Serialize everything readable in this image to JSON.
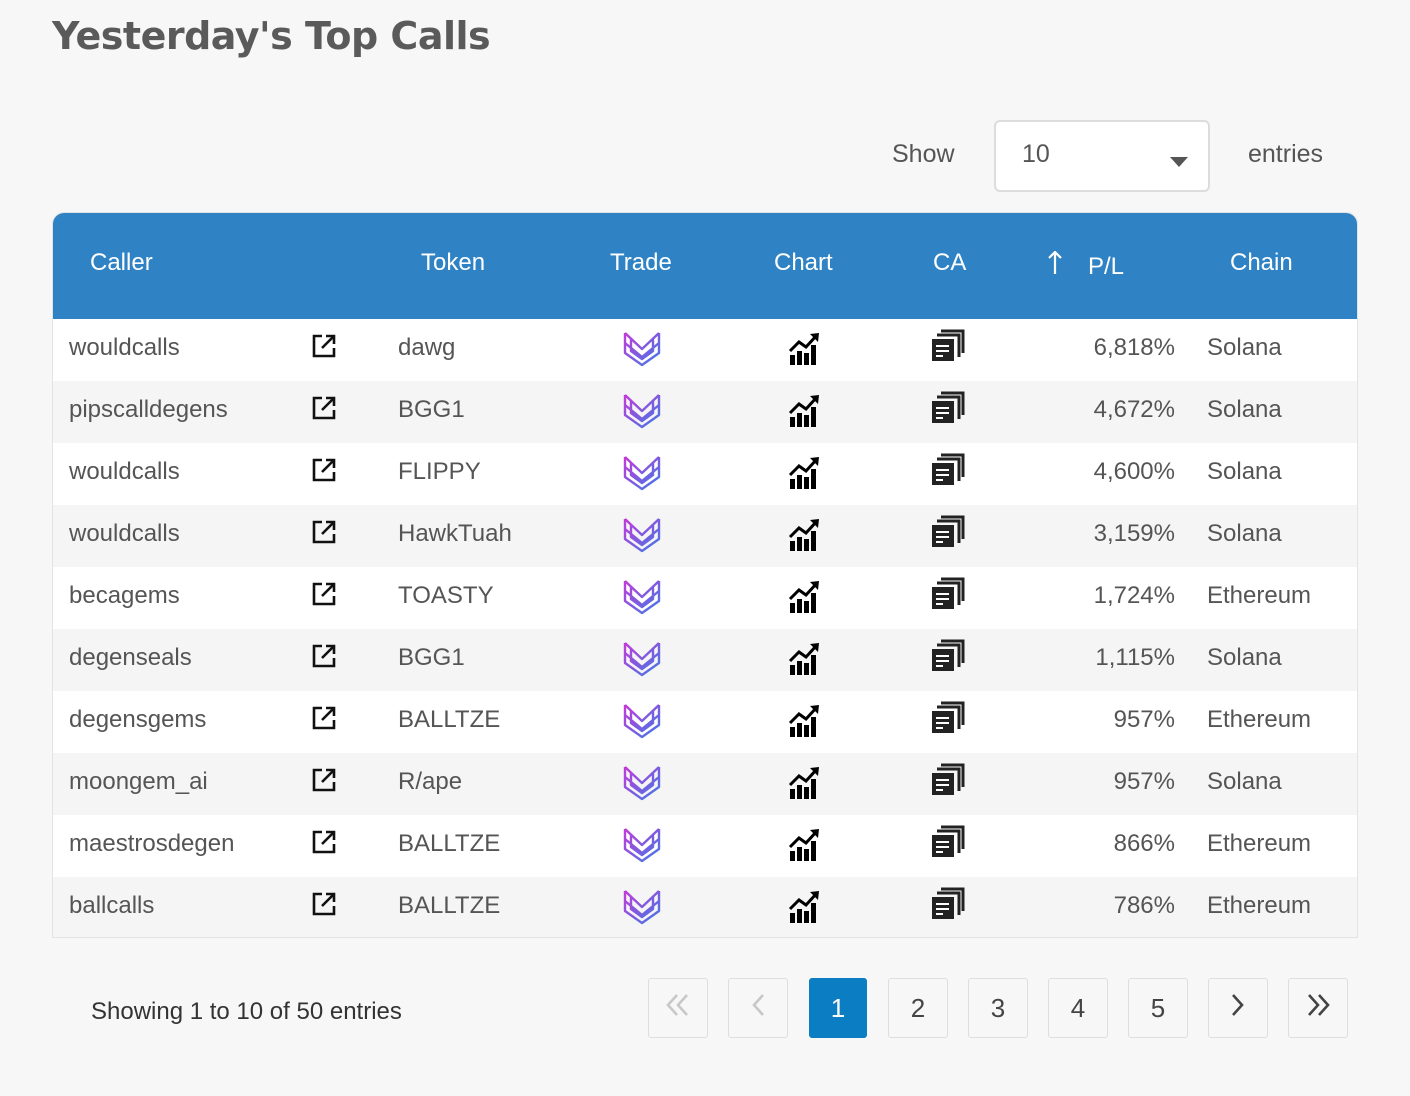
{
  "page": {
    "title": "Yesterday's Top Calls"
  },
  "length_control": {
    "show_label": "Show",
    "value": "10",
    "entries_label": "entries"
  },
  "table": {
    "columns": [
      "Caller",
      "Token",
      "Trade",
      "Chart",
      "CA",
      "P/L",
      "Chain"
    ],
    "sort": {
      "column": "P/L",
      "direction": "arrow-up-icon"
    },
    "header_color": "#2f83c5",
    "rows": [
      {
        "caller": "wouldcalls",
        "token": "dawg",
        "pl": "6,818%",
        "chain": "Solana"
      },
      {
        "caller": "pipscalldegens",
        "token": "BGG1",
        "pl": "4,672%",
        "chain": "Solana"
      },
      {
        "caller": "wouldcalls",
        "token": "FLIPPY",
        "pl": "4,600%",
        "chain": "Solana"
      },
      {
        "caller": "wouldcalls",
        "token": "HawkTuah",
        "pl": "3,159%",
        "chain": "Solana"
      },
      {
        "caller": "becagems",
        "token": "TOASTY",
        "pl": "1,724%",
        "chain": "Ethereum"
      },
      {
        "caller": "degenseals",
        "token": "BGG1",
        "pl": "1,115%",
        "chain": "Solana"
      },
      {
        "caller": "degensgems",
        "token": "BALLTZE",
        "pl": "957%",
        "chain": "Ethereum"
      },
      {
        "caller": "moongem_ai",
        "token": "R/ape",
        "pl": "957%",
        "chain": "Solana"
      },
      {
        "caller": "maestrosdegen",
        "token": "BALLTZE",
        "pl": "866%",
        "chain": "Ethereum"
      },
      {
        "caller": "ballcalls",
        "token": "BALLTZE",
        "pl": "786%",
        "chain": "Ethereum"
      }
    ],
    "row_icons": {
      "caller_link": "external-link-icon",
      "trade": "trade-logo-icon",
      "chart": "chart-icon",
      "ca": "copy-icon"
    }
  },
  "footer": {
    "info": "Showing 1 to 10 of 50 entries",
    "pages": [
      "1",
      "2",
      "3",
      "4",
      "5"
    ],
    "active_page": "1",
    "active_color": "#0b7dc2"
  }
}
